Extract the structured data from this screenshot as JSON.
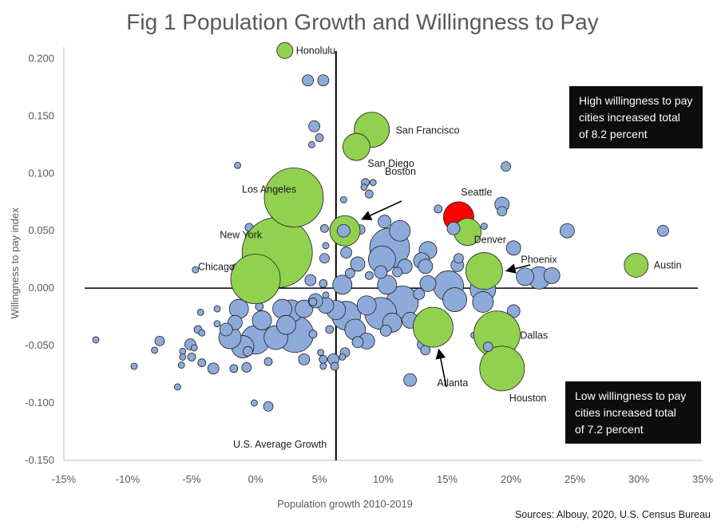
{
  "title": "Fig 1 Population Growth and Willingness to Pay",
  "source": "Sources: Albouy, 2020, U.S. Census Bureau",
  "callouts": {
    "high": "High willingness to pay\ncities increased total\nof 8.2 percent",
    "low": "Low willingness to pay\ncities increased total\nof 7.2 percent"
  },
  "avg_growth_label": "U.S. Average Growth",
  "colors": {
    "blue": "#8eaadb",
    "green": "#92d050",
    "red": "#ff0000",
    "outline": "#1f1f1f"
  },
  "chart_data": {
    "type": "scatter",
    "title": "Fig 1 Population Growth and Willingness to Pay",
    "xlabel": "Population growth 2010-2019",
    "ylabel": "Willingness to pay index",
    "xlim": [
      -0.15,
      0.35
    ],
    "ylim": [
      -0.15,
      0.21
    ],
    "x_ticks": [
      "-15%",
      "-10%",
      "-5%",
      "0%",
      "5%",
      "10%",
      "15%",
      "20%",
      "25%",
      "30%",
      "35%"
    ],
    "y_ticks": [
      "-0.150",
      "-0.100",
      "-0.050",
      "0.000",
      "0.050",
      "0.100",
      "0.150",
      "0.200"
    ],
    "us_average_growth": 0.063,
    "grid": false,
    "named_cities": [
      {
        "name": "Honolulu",
        "x": 0.023,
        "y": 0.207,
        "size": 10,
        "color": "green"
      },
      {
        "name": "San Francisco",
        "x": 0.091,
        "y": 0.138,
        "size": 22,
        "color": "green"
      },
      {
        "name": "San Diego",
        "x": 0.079,
        "y": 0.123,
        "size": 17,
        "color": "green"
      },
      {
        "name": "Los Angeles",
        "x": 0.03,
        "y": 0.079,
        "size": 37,
        "color": "green"
      },
      {
        "name": "New York",
        "x": 0.017,
        "y": 0.031,
        "size": 44,
        "color": "green"
      },
      {
        "name": "Chicago",
        "x": 0.0,
        "y": 0.008,
        "size": 31,
        "color": "green"
      },
      {
        "name": "Boston",
        "x": 0.07,
        "y": 0.05,
        "size": 19,
        "color": "green"
      },
      {
        "name": "Seattle",
        "x": 0.159,
        "y": 0.062,
        "size": 19,
        "color": "red"
      },
      {
        "name": "Denver",
        "x": 0.166,
        "y": 0.049,
        "size": 17,
        "color": "green"
      },
      {
        "name": "Phoenix",
        "x": 0.179,
        "y": 0.015,
        "size": 23,
        "color": "green"
      },
      {
        "name": "Austin",
        "x": 0.298,
        "y": 0.02,
        "size": 15,
        "color": "green"
      },
      {
        "name": "Atlanta",
        "x": 0.139,
        "y": -0.034,
        "size": 25,
        "color": "green"
      },
      {
        "name": "Dallas",
        "x": 0.189,
        "y": -0.04,
        "size": 29,
        "color": "green"
      },
      {
        "name": "Houston",
        "x": 0.193,
        "y": -0.07,
        "size": 28,
        "color": "green"
      }
    ],
    "other_cities": [
      [
        0.041,
        0.181,
        7
      ],
      [
        0.053,
        0.181,
        7
      ],
      [
        0.046,
        0.141,
        7
      ],
      [
        0.05,
        0.131,
        5
      ],
      [
        0.044,
        0.125,
        4
      ],
      [
        -0.014,
        0.107,
        4
      ],
      [
        0.196,
        0.106,
        6
      ],
      [
        0.086,
        0.092,
        5
      ],
      [
        0.092,
        0.092,
        4
      ],
      [
        0.085,
        0.088,
        4
      ],
      [
        0.089,
        0.082,
        5
      ],
      [
        0.069,
        0.077,
        4
      ],
      [
        0.193,
        0.073,
        9
      ],
      [
        0.143,
        0.069,
        5
      ],
      [
        0.193,
        0.067,
        6
      ],
      [
        0.166,
        0.068,
        4
      ],
      [
        0.244,
        0.05,
        9
      ],
      [
        0.319,
        0.05,
        7
      ],
      [
        0.113,
        0.05,
        13
      ],
      [
        0.101,
        0.058,
        8
      ],
      [
        0.069,
        0.05,
        8
      ],
      [
        0.158,
        0.052,
        8
      ],
      [
        0.179,
        0.054,
        4
      ],
      [
        0.054,
        0.052,
        5
      ],
      [
        0.082,
        0.051,
        6
      ],
      [
        0.021,
        0.042,
        5
      ],
      [
        -0.005,
        0.053,
        5
      ],
      [
        0.055,
        0.037,
        4
      ],
      [
        0.054,
        0.026,
        6
      ],
      [
        0.105,
        0.035,
        25
      ],
      [
        0.099,
        0.025,
        17
      ],
      [
        0.135,
        0.033,
        11
      ],
      [
        0.13,
        0.024,
        10
      ],
      [
        0.133,
        0.019,
        9
      ],
      [
        0.158,
        0.02,
        8
      ],
      [
        0.159,
        0.026,
        6
      ],
      [
        0.202,
        0.035,
        9
      ],
      [
        0.117,
        0.019,
        9
      ],
      [
        0.08,
        0.021,
        9
      ],
      [
        0.071,
        0.031,
        7
      ],
      [
        0.098,
        0.014,
        8
      ],
      [
        0.089,
        0.011,
        5
      ],
      [
        0.111,
        0.014,
        6
      ],
      [
        0.074,
        0.013,
        6
      ],
      [
        0.128,
        -0.005,
        7
      ],
      [
        -0.047,
        0.016,
        4
      ],
      [
        -0.015,
        0.017,
        6
      ],
      [
        0.012,
        0.012,
        10
      ],
      [
        0.043,
        0.007,
        7
      ],
      [
        0.053,
        0.004,
        5
      ],
      [
        0.068,
        0.003,
        12
      ],
      [
        0.103,
        0.003,
        12
      ],
      [
        0.135,
        0.004,
        10
      ],
      [
        0.151,
        0.002,
        19
      ],
      [
        0.178,
        -0.001,
        16
      ],
      [
        0.156,
        -0.01,
        15
      ],
      [
        0.178,
        -0.012,
        13
      ],
      [
        0.115,
        -0.012,
        20
      ],
      [
        0.098,
        -0.022,
        20
      ],
      [
        0.087,
        -0.015,
        12
      ],
      [
        0.071,
        -0.024,
        18
      ],
      [
        0.063,
        -0.019,
        12
      ],
      [
        0.055,
        -0.015,
        10
      ],
      [
        0.047,
        -0.011,
        9
      ],
      [
        0.038,
        -0.018,
        11
      ],
      [
        0.028,
        -0.02,
        14
      ],
      [
        0.021,
        -0.018,
        12
      ],
      [
        0.031,
        -0.04,
        23
      ],
      [
        0.016,
        -0.043,
        15
      ],
      [
        0.0,
        -0.045,
        18
      ],
      [
        -0.01,
        -0.051,
        14
      ],
      [
        -0.02,
        -0.043,
        14
      ],
      [
        -0.013,
        -0.018,
        12
      ],
      [
        -0.016,
        -0.03,
        9
      ],
      [
        -0.023,
        -0.036,
        8
      ],
      [
        0.078,
        -0.036,
        13
      ],
      [
        0.087,
        -0.046,
        10
      ],
      [
        0.107,
        -0.03,
        12
      ],
      [
        0.121,
        -0.028,
        10
      ],
      [
        0.102,
        -0.037,
        7
      ],
      [
        0.133,
        -0.054,
        6
      ],
      [
        0.131,
        -0.049,
        7
      ],
      [
        0.121,
        -0.08,
        8
      ],
      [
        0.193,
        -0.054,
        5
      ],
      [
        0.181,
        -0.049,
        4
      ],
      [
        0.202,
        -0.02,
        8
      ],
      [
        0.211,
        0.01,
        11
      ],
      [
        0.222,
        0.009,
        14
      ],
      [
        0.232,
        0.011,
        10
      ],
      [
        0.171,
        -0.041,
        4
      ],
      [
        0.07,
        -0.056,
        6
      ],
      [
        0.08,
        -0.047,
        7
      ],
      [
        0.068,
        -0.06,
        4
      ],
      [
        0.061,
        -0.062,
        7
      ],
      [
        0.062,
        -0.068,
        5
      ],
      [
        0.051,
        -0.056,
        4
      ],
      [
        0.053,
        -0.062,
        5
      ],
      [
        0.053,
        -0.068,
        4
      ],
      [
        0.038,
        -0.062,
        7
      ],
      [
        0.01,
        -0.103,
        6
      ],
      [
        -0.001,
        -0.1,
        4
      ],
      [
        -0.033,
        -0.07,
        7
      ],
      [
        -0.051,
        -0.049,
        7
      ],
      [
        -0.057,
        -0.055,
        4
      ],
      [
        -0.042,
        -0.065,
        5
      ],
      [
        -0.045,
        -0.036,
        5
      ],
      [
        -0.042,
        -0.039,
        4
      ],
      [
        -0.048,
        -0.052,
        4
      ],
      [
        -0.05,
        -0.06,
        5
      ],
      [
        -0.057,
        -0.06,
        4
      ],
      [
        -0.058,
        -0.067,
        4
      ],
      [
        -0.061,
        -0.086,
        4
      ],
      [
        -0.075,
        -0.046,
        6
      ],
      [
        -0.079,
        -0.054,
        4
      ],
      [
        -0.095,
        -0.068,
        4
      ],
      [
        -0.125,
        -0.045,
        4
      ],
      [
        -0.007,
        -0.069,
        6
      ],
      [
        -0.017,
        -0.07,
        5
      ],
      [
        -0.043,
        -0.021,
        4
      ],
      [
        -0.03,
        -0.031,
        4
      ],
      [
        0.003,
        -0.016,
        5
      ],
      [
        -0.03,
        -0.018,
        4
      ],
      [
        -0.006,
        -0.055,
        6
      ],
      [
        0.01,
        -0.064,
        5
      ],
      [
        0.045,
        -0.04,
        5
      ],
      [
        0.058,
        -0.036,
        5
      ],
      [
        0.045,
        -0.012,
        5
      ],
      [
        0.055,
        -0.006,
        4
      ],
      [
        0.024,
        -0.032,
        12
      ],
      [
        0.005,
        -0.028,
        12
      ]
    ]
  }
}
